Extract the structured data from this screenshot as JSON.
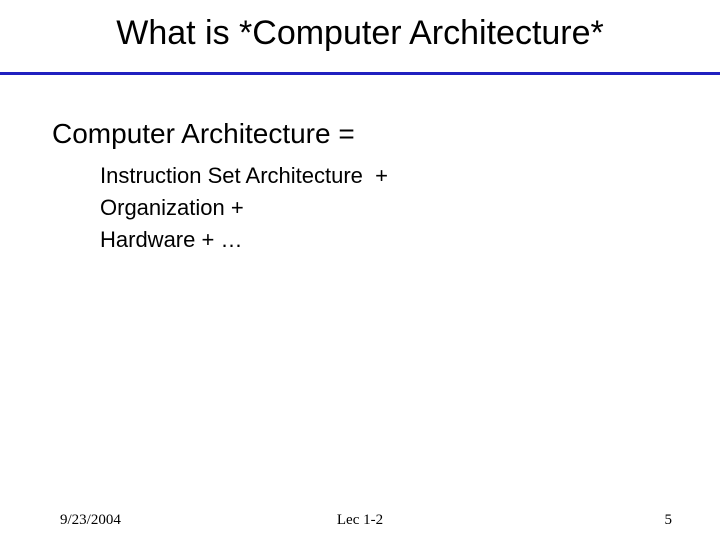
{
  "title": "What is *Computer Architecture*",
  "heading": "Computer Architecture =",
  "bullets": [
    "Instruction Set Architecture  +",
    "Organization + ",
    "Hardware + …"
  ],
  "footer": {
    "date": "9/23/2004",
    "center": "Lec 1-2",
    "page": "5"
  },
  "colors": {
    "underline": "#2020c0",
    "text": "#000000",
    "background": "#ffffff"
  },
  "fonts": {
    "title_size": 34,
    "heading_size": 28,
    "bullet_size": 22,
    "footer_size": 15
  }
}
